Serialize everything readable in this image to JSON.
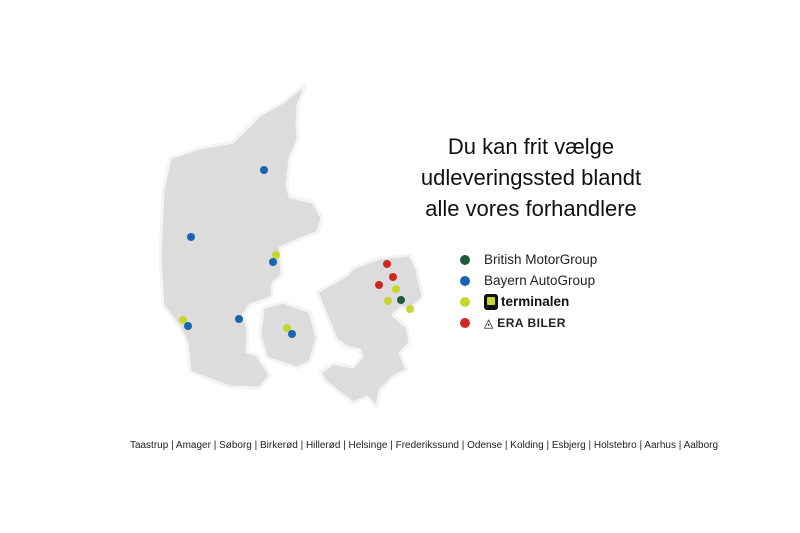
{
  "title_lines": [
    "Du kan frit vælge",
    "udleveringssted blandt",
    "alle vores forhandlere"
  ],
  "legend": [
    {
      "label": "British MotorGroup",
      "color": "#1e5a3a"
    },
    {
      "label": "Bayern AutoGroup",
      "color": "#1565b0"
    },
    {
      "label": "terminalen",
      "color": "#c8d52a",
      "icon": "terminalen-logo-icon"
    },
    {
      "label": "ERA BILER",
      "color": "#d0281f",
      "icon": "era-triangle-icon"
    }
  ],
  "footer": "Taastrup | Amager | Søborg | Birkerød | Hillerød | Helsinge | Frederikssund | Odense | Kolding | Esbjerg | Holstebro | Aarhus | Aalborg",
  "map": {
    "land_color": "#dcdcdc",
    "regions": [
      "Jylland",
      "Fyn",
      "Sjælland"
    ],
    "dealer_markers_by_legend_index": {
      "Jylland": [
        1,
        1,
        2,
        1,
        2,
        1,
        1
      ],
      "Fyn": [
        2,
        1
      ],
      "Sjælland": [
        3,
        3,
        3,
        2,
        2,
        0,
        2
      ]
    }
  }
}
